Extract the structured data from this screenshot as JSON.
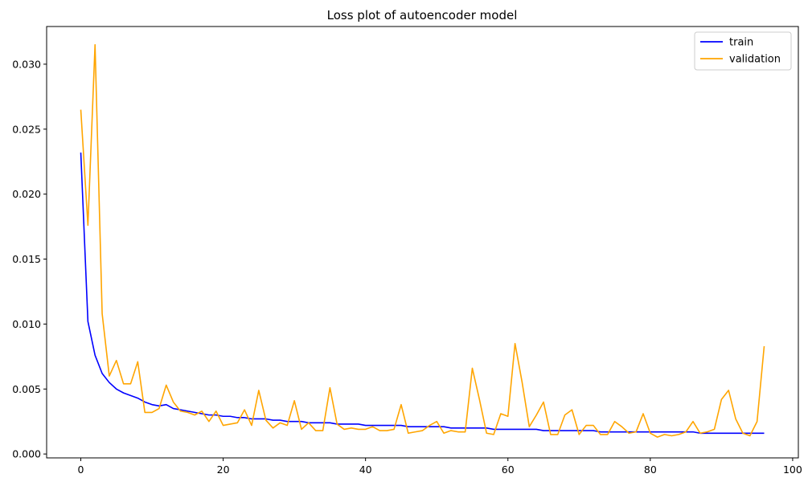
{
  "chart_data": {
    "type": "line",
    "title": "Loss plot of autoencoder model",
    "xlabel": "",
    "ylabel": "",
    "xlim": [
      -4.8,
      100.8
    ],
    "ylim": [
      -0.0003,
      0.0329
    ],
    "xticks": [
      0,
      20,
      40,
      60,
      80,
      100
    ],
    "xtick_labels": [
      "0",
      "20",
      "40",
      "60",
      "80",
      "100"
    ],
    "yticks": [
      0.0,
      0.005,
      0.01,
      0.015,
      0.02,
      0.025,
      0.03
    ],
    "ytick_labels": [
      "0.000",
      "0.005",
      "0.010",
      "0.015",
      "0.020",
      "0.025",
      "0.030"
    ],
    "grid": false,
    "legend_position": "top-right",
    "x": [
      0,
      1,
      2,
      3,
      4,
      5,
      6,
      7,
      8,
      9,
      10,
      11,
      12,
      13,
      14,
      15,
      16,
      17,
      18,
      19,
      20,
      21,
      22,
      23,
      24,
      25,
      26,
      27,
      28,
      29,
      30,
      31,
      32,
      33,
      34,
      35,
      36,
      37,
      38,
      39,
      40,
      41,
      42,
      43,
      44,
      45,
      46,
      47,
      48,
      49,
      50,
      51,
      52,
      53,
      54,
      55,
      56,
      57,
      58,
      59,
      60,
      61,
      62,
      63,
      64,
      65,
      66,
      67,
      68,
      69,
      70,
      71,
      72,
      73,
      74,
      75,
      76,
      77,
      78,
      79,
      80,
      81,
      82,
      83,
      84,
      85,
      86,
      87,
      88,
      89,
      90,
      91,
      92,
      93,
      94,
      95,
      96
    ],
    "series": [
      {
        "name": "train",
        "color": "#0000ff",
        "values": [
          0.0232,
          0.0102,
          0.0076,
          0.0062,
          0.0055,
          0.005,
          0.0047,
          0.0045,
          0.0043,
          0.004,
          0.0038,
          0.0037,
          0.0038,
          0.0035,
          0.0034,
          0.0033,
          0.0032,
          0.0031,
          0.003,
          0.003,
          0.0029,
          0.0029,
          0.0028,
          0.0028,
          0.0027,
          0.0027,
          0.0027,
          0.0026,
          0.0026,
          0.0025,
          0.0025,
          0.0025,
          0.0024,
          0.0024,
          0.0024,
          0.0024,
          0.0023,
          0.0023,
          0.0023,
          0.0023,
          0.0022,
          0.0022,
          0.0022,
          0.0022,
          0.0022,
          0.0022,
          0.0021,
          0.0021,
          0.0021,
          0.0021,
          0.0021,
          0.0021,
          0.002,
          0.002,
          0.002,
          0.002,
          0.002,
          0.002,
          0.0019,
          0.0019,
          0.0019,
          0.0019,
          0.0019,
          0.0019,
          0.0019,
          0.0018,
          0.0018,
          0.0018,
          0.0018,
          0.0018,
          0.0018,
          0.0018,
          0.0018,
          0.0017,
          0.0017,
          0.0017,
          0.0017,
          0.0017,
          0.0017,
          0.0017,
          0.0017,
          0.0017,
          0.0017,
          0.0017,
          0.0017,
          0.0017,
          0.0017,
          0.0016,
          0.0016,
          0.0016,
          0.0016,
          0.0016,
          0.0016,
          0.0016,
          0.0016,
          0.0016,
          0.0016
        ]
      },
      {
        "name": "validation",
        "color": "#ffa500",
        "values": [
          0.0265,
          0.0176,
          0.0315,
          0.0108,
          0.006,
          0.0072,
          0.0054,
          0.0054,
          0.0071,
          0.0032,
          0.0032,
          0.0035,
          0.0053,
          0.004,
          0.0033,
          0.0032,
          0.003,
          0.0033,
          0.0025,
          0.0033,
          0.0022,
          0.0023,
          0.0024,
          0.0034,
          0.0022,
          0.0049,
          0.0026,
          0.002,
          0.0024,
          0.0022,
          0.0041,
          0.0019,
          0.0024,
          0.0018,
          0.0018,
          0.0051,
          0.0023,
          0.0019,
          0.002,
          0.0019,
          0.0019,
          0.0021,
          0.0018,
          0.0018,
          0.0019,
          0.0038,
          0.0016,
          0.0017,
          0.0018,
          0.0022,
          0.0025,
          0.0016,
          0.0018,
          0.0017,
          0.0017,
          0.0066,
          0.0042,
          0.0016,
          0.0015,
          0.0031,
          0.0029,
          0.0085,
          0.0055,
          0.0021,
          0.003,
          0.004,
          0.0015,
          0.0015,
          0.003,
          0.0034,
          0.0015,
          0.0022,
          0.0022,
          0.0015,
          0.0015,
          0.0025,
          0.0021,
          0.0016,
          0.0017,
          0.0031,
          0.0016,
          0.0013,
          0.0015,
          0.0014,
          0.0015,
          0.0017,
          0.0025,
          0.0016,
          0.0017,
          0.0019,
          0.0042,
          0.0049,
          0.0027,
          0.0016,
          0.0014,
          0.0025,
          0.0083
        ]
      }
    ]
  }
}
